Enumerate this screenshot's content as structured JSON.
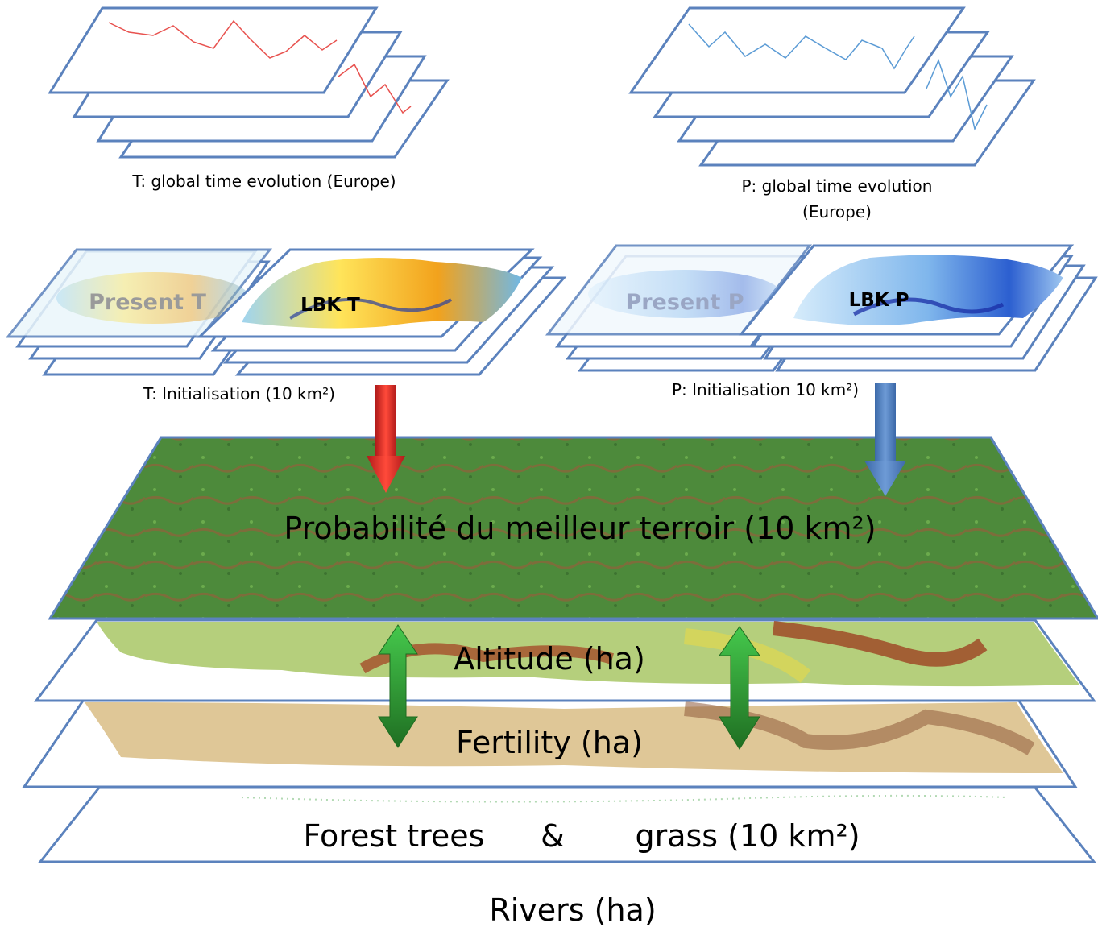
{
  "top_left": {
    "caption": "T: global time evolution (Europe)"
  },
  "top_right": {
    "caption_line1": "P: global time evolution",
    "caption_line2": "(Europe)"
  },
  "mid_left": {
    "label_present": "Present T",
    "label_lbk": "LBK T",
    "caption": "T: Initialisation (10 km²)"
  },
  "mid_right": {
    "label_present": "Present P",
    "label_lbk": "LBK P",
    "caption": "P: Initialisation 10 km²)"
  },
  "layers": {
    "terroir": "Probabilité du meilleur terroir (10 km²)",
    "altitude": "Altitude (ha)",
    "fertility": "Fertility (ha)",
    "forest_left": "Forest trees",
    "forest_amp": "&",
    "forest_right": "grass (10 km²)",
    "rivers": "Rivers (ha)"
  },
  "colors": {
    "frame_blue": "#5b82bd",
    "temperature_red": "#e8524f",
    "precip_blue": "#5b9bd5",
    "terroir_green": "#4f8a3a",
    "arrow_green": "#2fa33b"
  }
}
